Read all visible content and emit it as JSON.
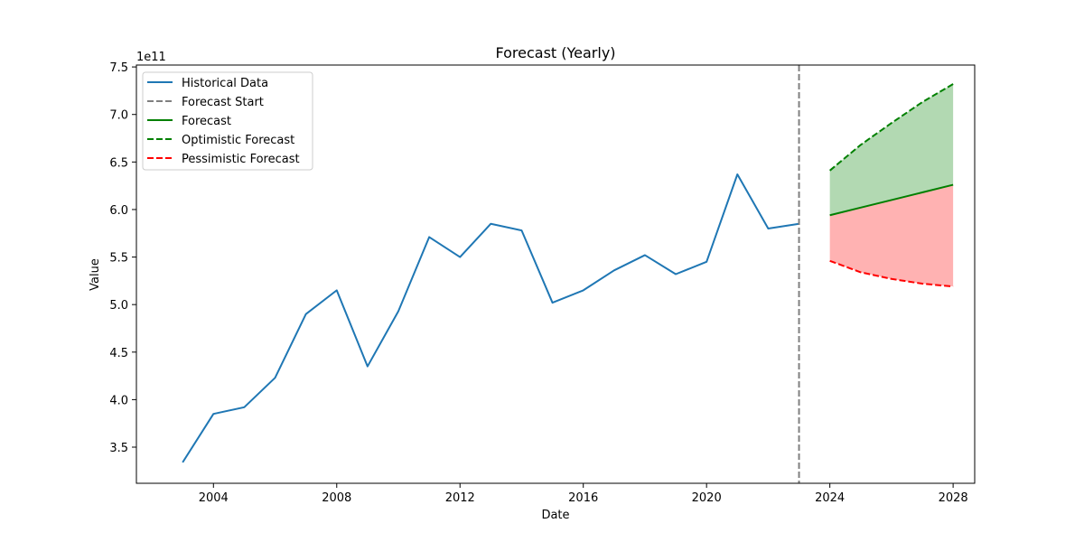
{
  "chart_data": {
    "type": "line",
    "title": "Forecast (Yearly)",
    "xlabel": "Date",
    "ylabel": "Value",
    "y_offset_label": "1e11",
    "y_scale": 100000000000,
    "xlim": [
      2001.5,
      2028.7
    ],
    "ylim": [
      3.12,
      7.52
    ],
    "x_ticks": [
      2004,
      2008,
      2012,
      2016,
      2020,
      2024,
      2028
    ],
    "x_tick_labels": [
      "2004",
      "2008",
      "2012",
      "2016",
      "2020",
      "2024",
      "2028"
    ],
    "y_ticks": [
      3.5,
      4.0,
      4.5,
      5.0,
      5.5,
      6.0,
      6.5,
      7.0,
      7.5
    ],
    "y_tick_labels": [
      "3.5",
      "4.0",
      "4.5",
      "5.0",
      "5.5",
      "6.0",
      "6.5",
      "7.0",
      "7.5"
    ],
    "forecast_start": 2023,
    "legend_position": "top-left",
    "series": [
      {
        "name": "Historical Data",
        "color": "#1f77b4",
        "style": "solid",
        "x": [
          2003,
          2004,
          2005,
          2006,
          2007,
          2008,
          2009,
          2010,
          2011,
          2012,
          2013,
          2014,
          2015,
          2016,
          2017,
          2018,
          2019,
          2020,
          2021,
          2022,
          2023
        ],
        "y": [
          3.34,
          3.85,
          3.92,
          4.23,
          4.9,
          5.15,
          4.35,
          4.93,
          5.71,
          5.5,
          5.85,
          5.78,
          5.02,
          5.15,
          5.36,
          5.52,
          5.32,
          5.45,
          6.37,
          5.8,
          5.85
        ]
      },
      {
        "name": "Forecast",
        "color": "#008000",
        "style": "solid",
        "x": [
          2024,
          2025,
          2026,
          2027,
          2028
        ],
        "y": [
          5.94,
          6.02,
          6.1,
          6.18,
          6.26
        ]
      },
      {
        "name": "Optimistic Forecast",
        "color": "#008000",
        "style": "dashed",
        "x": [
          2024,
          2025,
          2026,
          2027,
          2028
        ],
        "y": [
          6.41,
          6.68,
          6.91,
          7.13,
          7.32
        ]
      },
      {
        "name": "Pessimistic Forecast",
        "color": "#ff0000",
        "style": "dashed",
        "x": [
          2024,
          2025,
          2026,
          2027,
          2028
        ],
        "y": [
          5.46,
          5.34,
          5.27,
          5.22,
          5.19
        ]
      }
    ],
    "legend": [
      {
        "label": "Historical Data",
        "color": "#1f77b4",
        "style": "solid"
      },
      {
        "label": "Forecast Start",
        "color": "#808080",
        "style": "dashed"
      },
      {
        "label": "Forecast",
        "color": "#008000",
        "style": "solid"
      },
      {
        "label": "Optimistic Forecast",
        "color": "#008000",
        "style": "dashed"
      },
      {
        "label": "Pessimistic Forecast",
        "color": "#ff0000",
        "style": "dashed"
      }
    ],
    "bands": [
      {
        "upper": "Optimistic Forecast",
        "lower": "Forecast",
        "color": "#008000",
        "opacity": 0.3
      },
      {
        "upper": "Forecast",
        "lower": "Pessimistic Forecast",
        "color": "#ff0000",
        "opacity": 0.3
      }
    ]
  }
}
